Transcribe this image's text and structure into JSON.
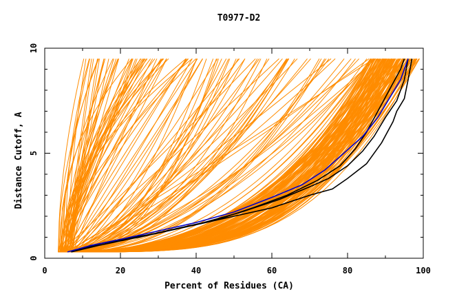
{
  "chart_data": {
    "type": "line",
    "title": "T0977-D2",
    "xlabel": "Percent of Residues (CA)",
    "ylabel": "Distance Cutoff, A",
    "xlim": [
      0,
      100
    ],
    "ylim": [
      0,
      10
    ],
    "x_ticks": [
      "0",
      "20",
      "40",
      "60",
      "80",
      "100"
    ],
    "y_ticks": [
      "0",
      "5",
      "10"
    ],
    "x_tick_values": [
      0,
      20,
      40,
      60,
      80,
      100
    ],
    "y_tick_values": [
      0,
      5,
      10
    ],
    "x_minor_ticks": [
      10,
      30,
      50,
      70,
      90
    ],
    "y_minor_ticks": [
      1,
      2,
      3,
      4,
      6,
      7,
      8,
      9
    ],
    "grid": false,
    "legend": "none",
    "colors": {
      "models": "#ff8c00",
      "highlight_black": "#000000",
      "highlight_blue": "#0000cc",
      "frame": "#000000"
    },
    "series": [
      {
        "color": "#000000",
        "points": [
          [
            7,
            0.3
          ],
          [
            12,
            0.6
          ],
          [
            20,
            0.9
          ],
          [
            30,
            1.2
          ],
          [
            40,
            1.6
          ],
          [
            50,
            2.0
          ],
          [
            60,
            2.4
          ],
          [
            70,
            3.0
          ],
          [
            76,
            3.3
          ],
          [
            80,
            3.8
          ],
          [
            85,
            4.5
          ],
          [
            89,
            5.5
          ],
          [
            92,
            6.5
          ],
          [
            93,
            7.0
          ],
          [
            95,
            7.6
          ],
          [
            96,
            8.5
          ],
          [
            97,
            9.5
          ]
        ]
      },
      {
        "color": "#000000",
        "points": [
          [
            7,
            0.3
          ],
          [
            14,
            0.6
          ],
          [
            22,
            0.9
          ],
          [
            32,
            1.3
          ],
          [
            42,
            1.7
          ],
          [
            52,
            2.2
          ],
          [
            62,
            2.8
          ],
          [
            70,
            3.4
          ],
          [
            75,
            3.8
          ],
          [
            80,
            4.4
          ],
          [
            84,
            5.1
          ],
          [
            87,
            5.8
          ],
          [
            90,
            6.7
          ],
          [
            93,
            7.5
          ],
          [
            95,
            8.5
          ],
          [
            96,
            9.5
          ]
        ]
      },
      {
        "color": "#000000",
        "points": [
          [
            7,
            0.3
          ],
          [
            15,
            0.7
          ],
          [
            25,
            1.0
          ],
          [
            35,
            1.4
          ],
          [
            45,
            1.8
          ],
          [
            55,
            2.4
          ],
          [
            64,
            3.0
          ],
          [
            72,
            3.7
          ],
          [
            78,
            4.4
          ],
          [
            82,
            5.2
          ],
          [
            85,
            6.0
          ],
          [
            88,
            7.0
          ],
          [
            91,
            8.0
          ],
          [
            94,
            9.0
          ],
          [
            95,
            9.5
          ]
        ]
      },
      {
        "color": "#0000cc",
        "points": [
          [
            6,
            0.3
          ],
          [
            12,
            0.6
          ],
          [
            20,
            0.9
          ],
          [
            30,
            1.3
          ],
          [
            40,
            1.7
          ],
          [
            50,
            2.2
          ],
          [
            60,
            2.9
          ],
          [
            68,
            3.5
          ],
          [
            74,
            4.2
          ],
          [
            79,
            5.0
          ],
          [
            84,
            5.8
          ],
          [
            88,
            6.7
          ],
          [
            91,
            7.6
          ],
          [
            94,
            8.5
          ],
          [
            96,
            9.5
          ]
        ]
      }
    ]
  }
}
